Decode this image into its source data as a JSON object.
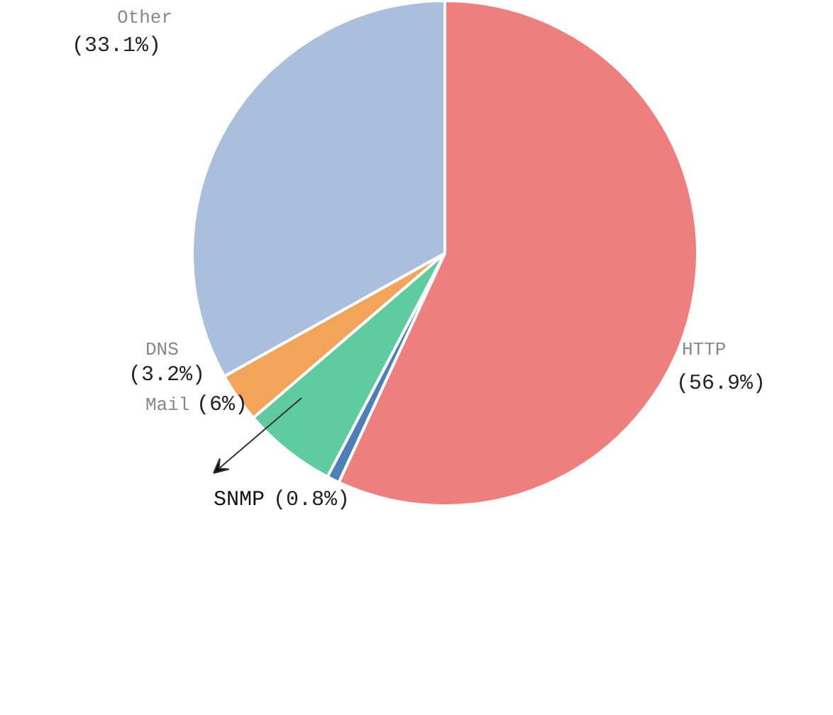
{
  "chart_data": {
    "type": "pie",
    "categories": [
      "HTTP",
      "SNMP",
      "Mail",
      "DNS",
      "Other"
    ],
    "values": [
      56.9,
      0.8,
      6,
      3.2,
      33.1
    ],
    "value_labels": [
      "(56.9%)",
      "(0.8%)",
      "(6%)",
      "(3.2%)",
      "(33.1%)"
    ],
    "colors": [
      "#ef7f7f",
      "#4f7fb8",
      "#5fcca0",
      "#f2a55a",
      "#a9bfdd"
    ]
  }
}
